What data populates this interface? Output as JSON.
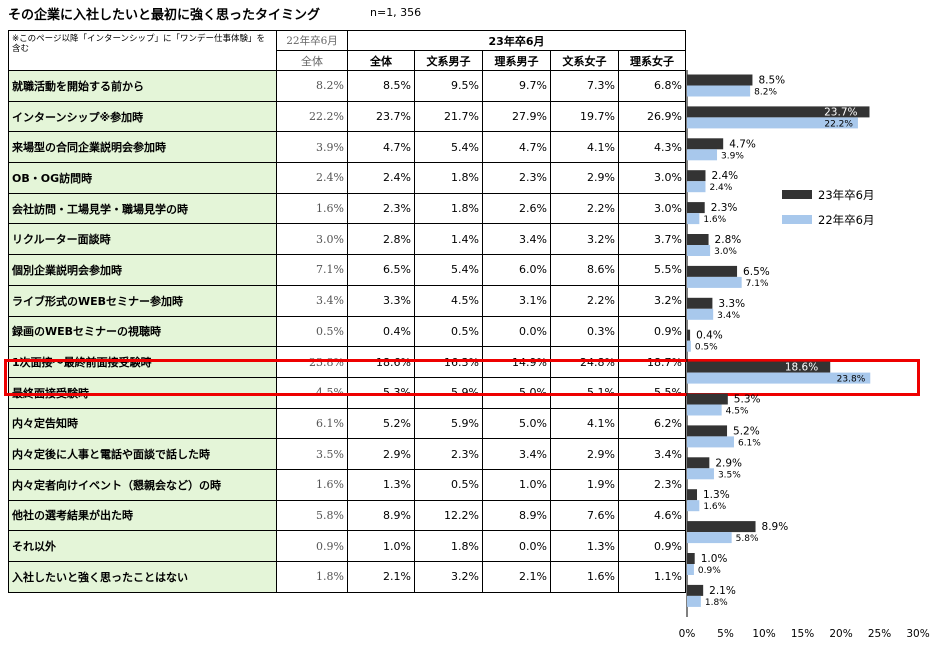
{
  "header": {
    "title": "その企業に入社したいと最初に強く思ったタイミング",
    "n": "n=1, 356",
    "note": "※このページ以降「インターンシップ」に「ワンデー仕事体験」を含む",
    "col_22": "22年卒6月",
    "col_23": "23年卒6月",
    "sub_22": "全体",
    "sub_23": [
      "全体",
      "文系男子",
      "理系男子",
      "文系女子",
      "理系女子"
    ]
  },
  "rows": [
    {
      "label": "就職活動を開始する前から",
      "v22": "8.2%",
      "all": "8.5%",
      "bm": "9.5%",
      "rm": "9.7%",
      "bf": "7.3%",
      "rf": "6.8%"
    },
    {
      "label": "インターンシップ※参加時",
      "v22": "22.2%",
      "all": "23.7%",
      "bm": "21.7%",
      "rm": "27.9%",
      "bf": "19.7%",
      "rf": "26.9%"
    },
    {
      "label": "来場型の合同企業説明会参加時",
      "v22": "3.9%",
      "all": "4.7%",
      "bm": "5.4%",
      "rm": "4.7%",
      "bf": "4.1%",
      "rf": "4.3%"
    },
    {
      "label": "OB・OG訪問時",
      "v22": "2.4%",
      "all": "2.4%",
      "bm": "1.8%",
      "rm": "2.3%",
      "bf": "2.9%",
      "rf": "3.0%"
    },
    {
      "label": "会社訪問・工場見学・職場見学の時",
      "v22": "1.6%",
      "all": "2.3%",
      "bm": "1.8%",
      "rm": "2.6%",
      "bf": "2.2%",
      "rf": "3.0%"
    },
    {
      "label": "リクルーター面談時",
      "v22": "3.0%",
      "all": "2.8%",
      "bm": "1.4%",
      "rm": "3.4%",
      "bf": "3.2%",
      "rf": "3.7%"
    },
    {
      "label": "個別企業説明会参加時",
      "v22": "7.1%",
      "all": "6.5%",
      "bm": "5.4%",
      "rm": "6.0%",
      "bf": "8.6%",
      "rf": "5.5%"
    },
    {
      "label": "ライブ形式のWEBセミナー参加時",
      "v22": "3.4%",
      "all": "3.3%",
      "bm": "4.5%",
      "rm": "3.1%",
      "bf": "2.2%",
      "rf": "3.2%"
    },
    {
      "label": "録画のWEBセミナーの視聴時",
      "v22": "0.5%",
      "all": "0.4%",
      "bm": "0.5%",
      "rm": "0.0%",
      "bf": "0.3%",
      "rf": "0.9%"
    },
    {
      "label": "1次面接～最終前面接受験時",
      "v22": "23.8%",
      "all": "18.6%",
      "bm": "16.3%",
      "rm": "14.9%",
      "bf": "24.8%",
      "rf": "18.7%"
    },
    {
      "label": "最終面接受験時",
      "v22": "4.5%",
      "all": "5.3%",
      "bm": "5.9%",
      "rm": "5.0%",
      "bf": "5.1%",
      "rf": "5.5%"
    },
    {
      "label": "内々定告知時",
      "v22": "6.1%",
      "all": "5.2%",
      "bm": "5.9%",
      "rm": "5.0%",
      "bf": "4.1%",
      "rf": "6.2%"
    },
    {
      "label": "内々定後に人事と電話や面談で話した時",
      "v22": "3.5%",
      "all": "2.9%",
      "bm": "2.3%",
      "rm": "3.4%",
      "bf": "2.9%",
      "rf": "3.4%"
    },
    {
      "label": "内々定者向けイベント（懇親会など）の時",
      "v22": "1.6%",
      "all": "1.3%",
      "bm": "0.5%",
      "rm": "1.0%",
      "bf": "1.9%",
      "rf": "2.3%"
    },
    {
      "label": "他社の選考結果が出た時",
      "v22": "5.8%",
      "all": "8.9%",
      "bm": "12.2%",
      "rm": "8.9%",
      "bf": "7.6%",
      "rf": "4.6%"
    },
    {
      "label": "それ以外",
      "v22": "0.9%",
      "all": "1.0%",
      "bm": "1.8%",
      "rm": "0.0%",
      "bf": "1.3%",
      "rf": "0.9%"
    },
    {
      "label": "入社したいと強く思ったことはない",
      "v22": "1.8%",
      "all": "2.1%",
      "bm": "3.2%",
      "rm": "2.1%",
      "bf": "1.6%",
      "rf": "1.1%"
    }
  ],
  "chart_data": {
    "type": "bar",
    "orientation": "horizontal",
    "categories": [
      "就職活動を開始する前から",
      "インターンシップ※参加時",
      "来場型の合同企業説明会参加時",
      "OB・OG訪問時",
      "会社訪問・工場見学・職場見学の時",
      "リクルーター面談時",
      "個別企業説明会参加時",
      "ライブ形式のWEBセミナー参加時",
      "録画のWEBセミナーの視聴時",
      "1次面接～最終前面接受験時",
      "最終面接受験時",
      "内々定告知時",
      "内々定後に人事と電話や面談で話した時",
      "内々定者向けイベント（懇親会など）の時",
      "他社の選考結果が出た時",
      "それ以外",
      "入社したいと強く思ったことはない"
    ],
    "series": [
      {
        "name": "23年卒6月",
        "color": "#333333",
        "values": [
          8.5,
          23.7,
          4.7,
          2.4,
          2.3,
          2.8,
          6.5,
          3.3,
          0.4,
          18.6,
          5.3,
          5.2,
          2.9,
          1.3,
          8.9,
          1.0,
          2.1
        ]
      },
      {
        "name": "22年卒6月",
        "color": "#a8c8ec",
        "values": [
          8.2,
          22.2,
          3.9,
          2.4,
          1.6,
          3.0,
          7.1,
          3.4,
          0.5,
          23.8,
          4.5,
          6.1,
          3.5,
          1.6,
          5.8,
          0.9,
          1.8
        ]
      }
    ],
    "xlim": [
      0,
      30
    ],
    "xticks": [
      "0%",
      "5%",
      "10%",
      "15%",
      "20%",
      "25%",
      "30%"
    ],
    "legend": "right",
    "grid": false
  },
  "colors": {
    "highlight": "#ee0000",
    "label_bg": "#e4f5d8"
  },
  "highlight_row": 9
}
